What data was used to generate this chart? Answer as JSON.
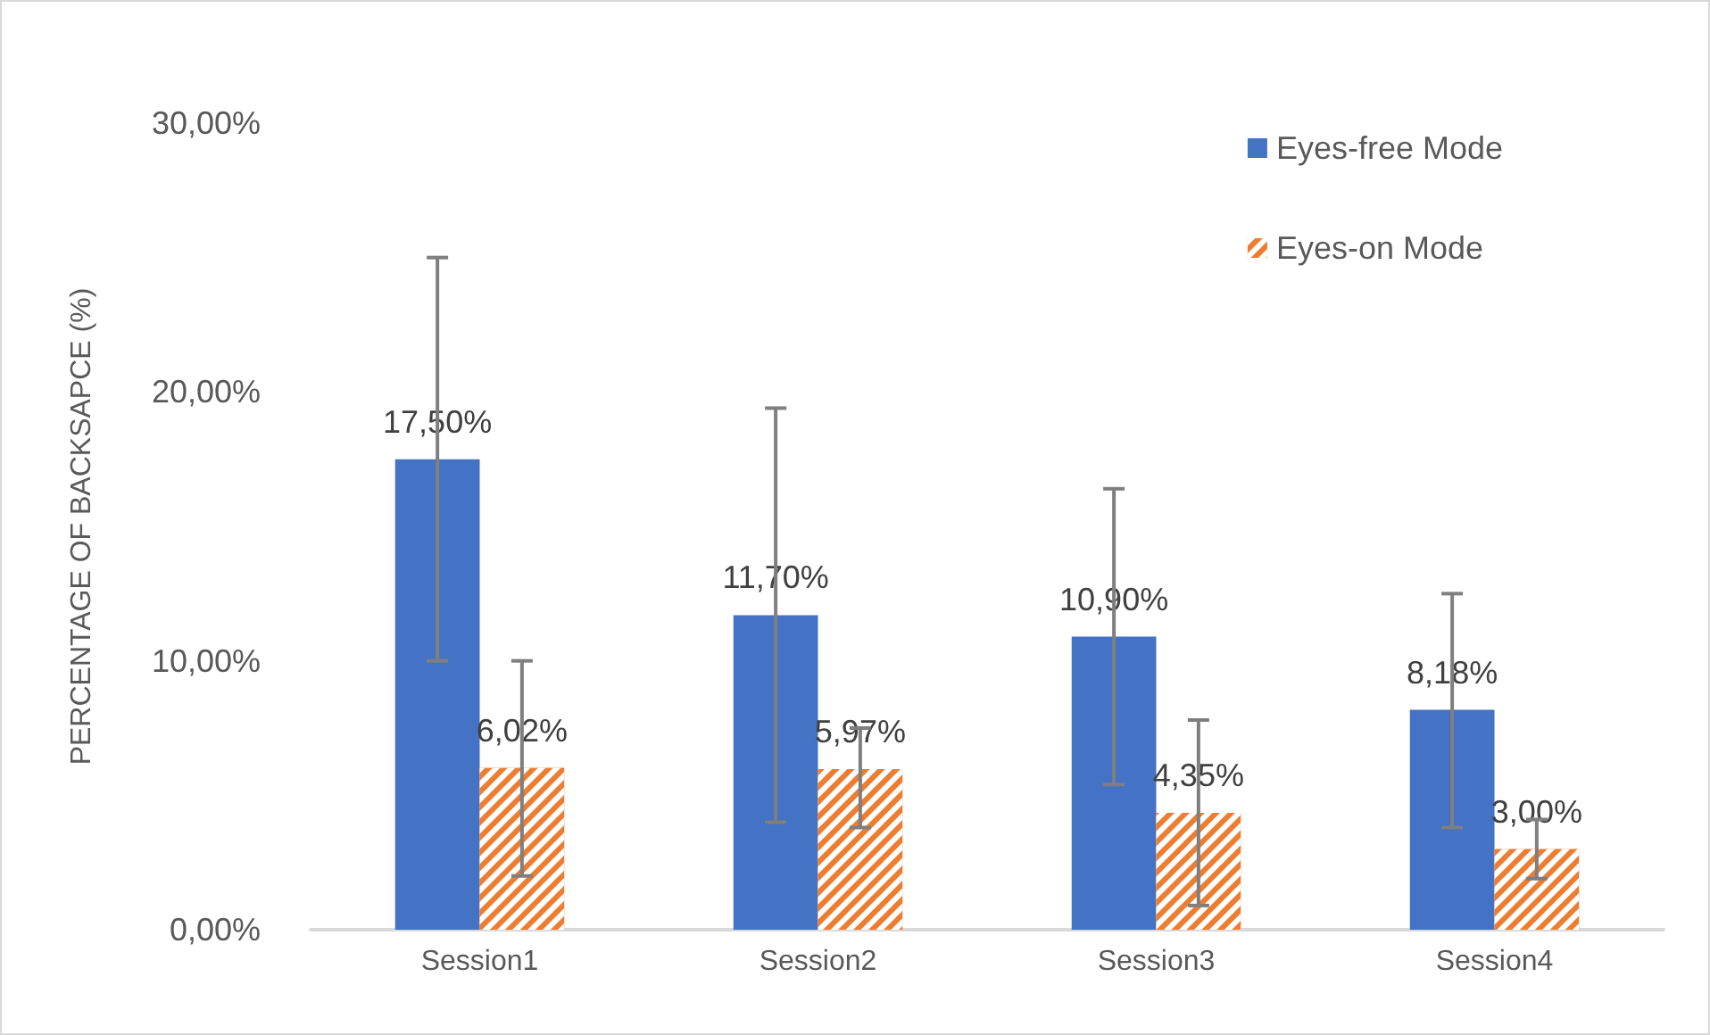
{
  "chart_data": {
    "type": "bar",
    "ylabel": "PERCENTAGE OF BACKSAPCE (%)",
    "categories": [
      "Session1",
      "Session2",
      "Session3",
      "Session4"
    ],
    "series": [
      {
        "name": "Eyes-free Mode",
        "color": "#4472c4",
        "values": [
          17.5,
          11.7,
          10.9,
          8.18
        ],
        "value_labels": [
          "17,50%",
          "11,70%",
          "10,90%",
          "8,18%"
        ],
        "errors": [
          [
            10,
            25
          ],
          [
            4,
            19.4
          ],
          [
            5.4,
            16.4
          ],
          [
            3.8,
            12.5
          ]
        ]
      },
      {
        "name": "Eyes-on Mode",
        "color": "#ed7d31",
        "values": [
          6.02,
          5.97,
          4.35,
          3.0
        ],
        "value_labels": [
          "6,02%",
          "5,97%",
          "4,35%",
          "3,00%"
        ],
        "errors": [
          [
            2,
            10
          ],
          [
            3.8,
            7.5
          ],
          [
            0.9,
            7.8
          ],
          [
            1.9,
            4.1
          ]
        ]
      }
    ],
    "ylim": [
      0,
      30
    ],
    "yticks": [
      {
        "value": 0,
        "label": "0,00%"
      },
      {
        "value": 10,
        "label": "10,00%"
      },
      {
        "value": 20,
        "label": "20,00%"
      },
      {
        "value": 30,
        "label": "30,00%"
      }
    ],
    "grid": false,
    "legend": "top right"
  }
}
